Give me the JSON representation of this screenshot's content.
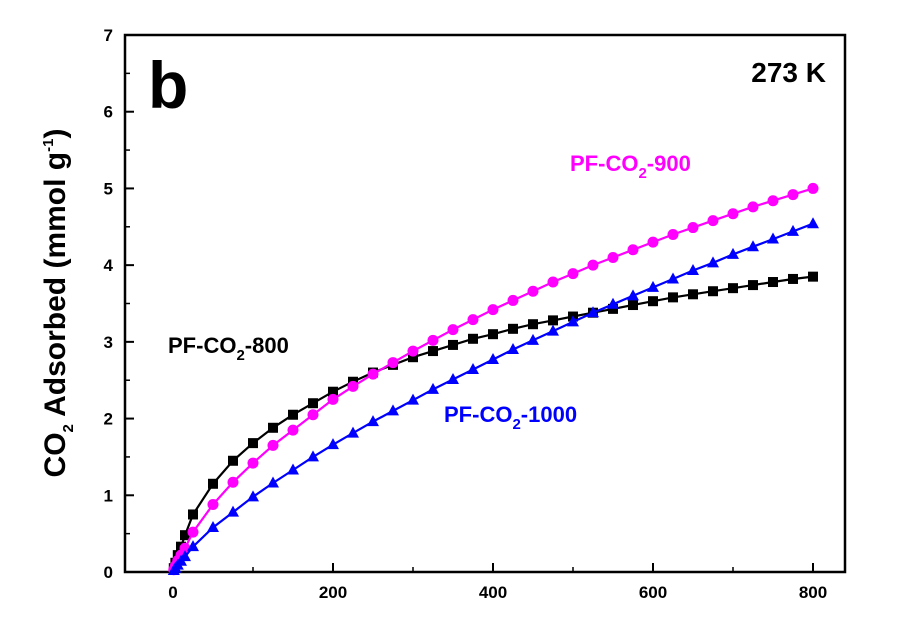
{
  "chart_data": {
    "type": "line",
    "panel_label": "b",
    "temperature_label": "273 K",
    "ylabel": {
      "pre": "CO",
      "sub": "2",
      "mid": " Adsorbed (mmol g",
      "sup": "-1",
      "post": ")"
    },
    "xlabel": "",
    "xlim": [
      -60,
      840
    ],
    "ylim": [
      0,
      7
    ],
    "xticks": [
      0,
      200,
      400,
      600,
      800
    ],
    "yticks": [
      0,
      1,
      2,
      3,
      4,
      5,
      6,
      7
    ],
    "xtick_labels": [
      "0",
      "200",
      "400",
      "600",
      "800"
    ],
    "ytick_labels": [
      "0",
      "1",
      "2",
      "3",
      "4",
      "5",
      "6",
      "7"
    ],
    "series": [
      {
        "name": "PF-CO2-800",
        "label_parts": {
          "pre": "PF-CO",
          "sub": "2",
          "post": "-800"
        },
        "color": "#000000",
        "marker": "square",
        "x": [
          1,
          3,
          6,
          10,
          15,
          25,
          50,
          75,
          100,
          125,
          150,
          175,
          200,
          225,
          250,
          275,
          300,
          325,
          350,
          375,
          400,
          425,
          450,
          475,
          500,
          525,
          550,
          575,
          600,
          625,
          650,
          675,
          700,
          725,
          750,
          775,
          800
        ],
        "y": [
          0.05,
          0.12,
          0.22,
          0.33,
          0.48,
          0.75,
          1.15,
          1.45,
          1.68,
          1.88,
          2.05,
          2.2,
          2.35,
          2.48,
          2.6,
          2.7,
          2.8,
          2.88,
          2.96,
          3.04,
          3.1,
          3.17,
          3.23,
          3.28,
          3.33,
          3.38,
          3.43,
          3.48,
          3.53,
          3.58,
          3.62,
          3.66,
          3.7,
          3.74,
          3.78,
          3.82,
          3.85
        ]
      },
      {
        "name": "PF-CO2-900",
        "label_parts": {
          "pre": "PF-CO",
          "sub": "2",
          "post": "-900"
        },
        "color": "#ff00ff",
        "marker": "circle",
        "x": [
          1,
          3,
          6,
          10,
          15,
          25,
          50,
          75,
          100,
          125,
          150,
          175,
          200,
          225,
          250,
          275,
          300,
          325,
          350,
          375,
          400,
          425,
          450,
          475,
          500,
          525,
          550,
          575,
          600,
          625,
          650,
          675,
          700,
          725,
          750,
          775,
          800
        ],
        "y": [
          0.03,
          0.08,
          0.15,
          0.22,
          0.31,
          0.52,
          0.88,
          1.17,
          1.42,
          1.65,
          1.85,
          2.05,
          2.25,
          2.42,
          2.58,
          2.73,
          2.88,
          3.02,
          3.16,
          3.29,
          3.42,
          3.54,
          3.66,
          3.78,
          3.89,
          4.0,
          4.1,
          4.2,
          4.3,
          4.4,
          4.49,
          4.58,
          4.67,
          4.76,
          4.84,
          4.92,
          5.0
        ]
      },
      {
        "name": "PF-CO2-1000",
        "label_parts": {
          "pre": "PF-CO",
          "sub": "2",
          "post": "-1000"
        },
        "color": "#0000ff",
        "marker": "triangle",
        "x": [
          1,
          3,
          6,
          10,
          15,
          25,
          50,
          75,
          100,
          125,
          150,
          175,
          200,
          225,
          250,
          275,
          300,
          325,
          350,
          375,
          400,
          425,
          450,
          475,
          500,
          525,
          550,
          575,
          600,
          625,
          650,
          675,
          700,
          725,
          750,
          775,
          800
        ],
        "y": [
          0.02,
          0.05,
          0.09,
          0.14,
          0.2,
          0.33,
          0.58,
          0.78,
          0.98,
          1.16,
          1.33,
          1.5,
          1.66,
          1.81,
          1.96,
          2.1,
          2.24,
          2.38,
          2.51,
          2.64,
          2.77,
          2.9,
          3.02,
          3.14,
          3.26,
          3.38,
          3.49,
          3.6,
          3.71,
          3.82,
          3.93,
          4.03,
          4.14,
          4.24,
          4.34,
          4.44,
          4.54
        ]
      }
    ],
    "grid": false,
    "legend": "inline labels near curves"
  }
}
